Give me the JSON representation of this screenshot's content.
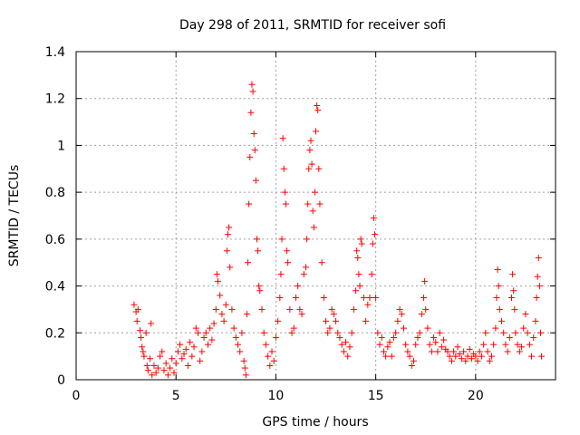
{
  "chart_data": {
    "type": "scatter",
    "title": "Day 298 of 2011, SRMTID for receiver sofi",
    "xlabel": "GPS time / hours",
    "ylabel": "SRMTID / TECUs",
    "xlim": [
      0,
      24
    ],
    "ylim": [
      0,
      1.4
    ],
    "xticks": [
      0,
      5,
      10,
      15,
      20
    ],
    "yticks": [
      0,
      0.2,
      0.4,
      0.6,
      0.8,
      1,
      1.2,
      1.4
    ],
    "xtick_labels": [
      "0",
      "5",
      "10",
      "15",
      "20"
    ],
    "ytick_labels": [
      "0",
      "0.2",
      "0.4",
      "0.6",
      "0.8",
      "1",
      "1.2",
      "1.4"
    ],
    "grid": true,
    "marker": "+",
    "color": "#ff0000",
    "series": [
      {
        "name": "SRMTID",
        "points": [
          [
            2.9,
            0.32
          ],
          [
            3.0,
            0.29
          ],
          [
            3.05,
            0.25
          ],
          [
            3.1,
            0.3
          ],
          [
            3.2,
            0.21
          ],
          [
            3.25,
            0.18
          ],
          [
            3.3,
            0.14
          ],
          [
            3.35,
            0.12
          ],
          [
            3.4,
            0.1
          ],
          [
            3.5,
            0.2
          ],
          [
            3.55,
            0.06
          ],
          [
            3.6,
            0.04
          ],
          [
            3.7,
            0.09
          ],
          [
            3.75,
            0.24
          ],
          [
            3.8,
            0.02
          ],
          [
            3.9,
            0.06
          ],
          [
            4.0,
            0.03
          ],
          [
            4.1,
            0.05
          ],
          [
            4.2,
            0.1
          ],
          [
            4.3,
            0.12
          ],
          [
            4.4,
            0.04
          ],
          [
            4.5,
            0.07
          ],
          [
            4.6,
            0.02
          ],
          [
            4.7,
            0.05
          ],
          [
            4.8,
            0.09
          ],
          [
            4.9,
            0.03
          ],
          [
            5.0,
            0.07
          ],
          [
            5.1,
            0.12
          ],
          [
            5.2,
            0.15
          ],
          [
            5.3,
            0.09
          ],
          [
            5.4,
            0.11
          ],
          [
            5.5,
            0.13
          ],
          [
            5.6,
            0.06
          ],
          [
            5.7,
            0.16
          ],
          [
            5.8,
            0.1
          ],
          [
            5.9,
            0.14
          ],
          [
            6.0,
            0.22
          ],
          [
            6.1,
            0.2
          ],
          [
            6.2,
            0.08
          ],
          [
            6.3,
            0.12
          ],
          [
            6.4,
            0.18
          ],
          [
            6.5,
            0.2
          ],
          [
            6.6,
            0.15
          ],
          [
            6.7,
            0.22
          ],
          [
            6.8,
            0.17
          ],
          [
            6.9,
            0.24
          ],
          [
            7.0,
            0.3
          ],
          [
            7.05,
            0.45
          ],
          [
            7.1,
            0.42
          ],
          [
            7.2,
            0.36
          ],
          [
            7.3,
            0.28
          ],
          [
            7.4,
            0.25
          ],
          [
            7.5,
            0.32
          ],
          [
            7.55,
            0.55
          ],
          [
            7.6,
            0.62
          ],
          [
            7.65,
            0.65
          ],
          [
            7.7,
            0.48
          ],
          [
            7.8,
            0.3
          ],
          [
            7.9,
            0.22
          ],
          [
            8.0,
            0.18
          ],
          [
            8.1,
            0.15
          ],
          [
            8.2,
            0.12
          ],
          [
            8.3,
            0.2
          ],
          [
            8.4,
            0.08
          ],
          [
            8.45,
            0.05
          ],
          [
            8.5,
            0.02
          ],
          [
            8.55,
            0.28
          ],
          [
            8.6,
            0.5
          ],
          [
            8.65,
            0.75
          ],
          [
            8.7,
            0.95
          ],
          [
            8.75,
            1.14
          ],
          [
            8.8,
            1.26
          ],
          [
            8.85,
            1.23
          ],
          [
            8.9,
            1.05
          ],
          [
            8.95,
            0.98
          ],
          [
            9.0,
            0.85
          ],
          [
            9.05,
            0.6
          ],
          [
            9.1,
            0.55
          ],
          [
            9.15,
            0.4
          ],
          [
            9.2,
            0.38
          ],
          [
            9.3,
            0.3
          ],
          [
            9.4,
            0.2
          ],
          [
            9.5,
            0.15
          ],
          [
            9.6,
            0.1
          ],
          [
            9.7,
            0.06
          ],
          [
            9.8,
            0.12
          ],
          [
            9.9,
            0.08
          ],
          [
            10.0,
            0.18
          ],
          [
            10.1,
            0.25
          ],
          [
            10.2,
            0.35
          ],
          [
            10.25,
            0.45
          ],
          [
            10.3,
            0.6
          ],
          [
            10.35,
            1.03
          ],
          [
            10.4,
            0.9
          ],
          [
            10.45,
            0.8
          ],
          [
            10.5,
            0.75
          ],
          [
            10.55,
            0.55
          ],
          [
            10.6,
            0.5
          ],
          [
            10.7,
            0.3
          ],
          [
            10.8,
            0.2
          ],
          [
            10.9,
            0.22
          ],
          [
            11.0,
            0.35
          ],
          [
            11.1,
            0.4
          ],
          [
            11.2,
            0.3
          ],
          [
            11.3,
            0.28
          ],
          [
            11.4,
            0.45
          ],
          [
            11.5,
            0.48
          ],
          [
            11.55,
            0.6
          ],
          [
            11.6,
            0.75
          ],
          [
            11.65,
            0.9
          ],
          [
            11.7,
            0.98
          ],
          [
            11.75,
            1.02
          ],
          [
            11.8,
            0.92
          ],
          [
            11.85,
            0.72
          ],
          [
            11.9,
            0.65
          ],
          [
            11.95,
            0.8
          ],
          [
            12.0,
            1.06
          ],
          [
            12.05,
            1.17
          ],
          [
            12.1,
            1.15
          ],
          [
            12.15,
            0.9
          ],
          [
            12.2,
            0.75
          ],
          [
            12.3,
            0.5
          ],
          [
            12.4,
            0.35
          ],
          [
            12.5,
            0.25
          ],
          [
            12.6,
            0.2
          ],
          [
            12.7,
            0.22
          ],
          [
            12.8,
            0.3
          ],
          [
            12.9,
            0.28
          ],
          [
            13.0,
            0.25
          ],
          [
            13.1,
            0.2
          ],
          [
            13.2,
            0.18
          ],
          [
            13.3,
            0.15
          ],
          [
            13.4,
            0.12
          ],
          [
            13.5,
            0.16
          ],
          [
            13.6,
            0.1
          ],
          [
            13.7,
            0.14
          ],
          [
            13.8,
            0.2
          ],
          [
            13.9,
            0.3
          ],
          [
            14.0,
            0.38
          ],
          [
            14.05,
            0.55
          ],
          [
            14.1,
            0.52
          ],
          [
            14.15,
            0.45
          ],
          [
            14.2,
            0.4
          ],
          [
            14.25,
            0.6
          ],
          [
            14.3,
            0.58
          ],
          [
            14.4,
            0.35
          ],
          [
            14.5,
            0.25
          ],
          [
            14.6,
            0.32
          ],
          [
            14.7,
            0.35
          ],
          [
            14.8,
            0.45
          ],
          [
            14.85,
            0.58
          ],
          [
            14.9,
            0.69
          ],
          [
            14.95,
            0.62
          ],
          [
            15.0,
            0.35
          ],
          [
            15.1,
            0.2
          ],
          [
            15.2,
            0.15
          ],
          [
            15.3,
            0.18
          ],
          [
            15.4,
            0.12
          ],
          [
            15.5,
            0.1
          ],
          [
            15.6,
            0.14
          ],
          [
            15.7,
            0.16
          ],
          [
            15.8,
            0.1
          ],
          [
            15.9,
            0.18
          ],
          [
            16.0,
            0.2
          ],
          [
            16.1,
            0.25
          ],
          [
            16.2,
            0.3
          ],
          [
            16.3,
            0.28
          ],
          [
            16.4,
            0.22
          ],
          [
            16.5,
            0.15
          ],
          [
            16.6,
            0.12
          ],
          [
            16.7,
            0.1
          ],
          [
            16.8,
            0.06
          ],
          [
            16.9,
            0.08
          ],
          [
            17.0,
            0.15
          ],
          [
            17.1,
            0.18
          ],
          [
            17.2,
            0.2
          ],
          [
            17.3,
            0.28
          ],
          [
            17.4,
            0.35
          ],
          [
            17.45,
            0.42
          ],
          [
            17.5,
            0.3
          ],
          [
            17.6,
            0.22
          ],
          [
            17.7,
            0.15
          ],
          [
            17.8,
            0.12
          ],
          [
            17.9,
            0.18
          ],
          [
            18.0,
            0.16
          ],
          [
            18.1,
            0.12
          ],
          [
            18.2,
            0.2
          ],
          [
            18.3,
            0.14
          ],
          [
            18.4,
            0.17
          ],
          [
            18.5,
            0.13
          ],
          [
            18.6,
            0.12
          ],
          [
            18.7,
            0.1
          ],
          [
            18.8,
            0.08
          ],
          [
            18.9,
            0.12
          ],
          [
            19.0,
            0.1
          ],
          [
            19.1,
            0.14
          ],
          [
            19.2,
            0.11
          ],
          [
            19.3,
            0.09
          ],
          [
            19.4,
            0.12
          ],
          [
            19.5,
            0.08
          ],
          [
            19.6,
            0.1
          ],
          [
            19.7,
            0.13
          ],
          [
            19.8,
            0.09
          ],
          [
            19.9,
            0.11
          ],
          [
            20.0,
            0.1
          ],
          [
            20.1,
            0.08
          ],
          [
            20.2,
            0.12
          ],
          [
            20.3,
            0.1
          ],
          [
            20.4,
            0.15
          ],
          [
            20.5,
            0.2
          ],
          [
            20.6,
            0.12
          ],
          [
            20.7,
            0.08
          ],
          [
            20.8,
            0.1
          ],
          [
            20.9,
            0.15
          ],
          [
            21.0,
            0.22
          ],
          [
            21.05,
            0.35
          ],
          [
            21.1,
            0.47
          ],
          [
            21.15,
            0.4
          ],
          [
            21.2,
            0.3
          ],
          [
            21.3,
            0.25
          ],
          [
            21.4,
            0.2
          ],
          [
            21.5,
            0.15
          ],
          [
            21.6,
            0.12
          ],
          [
            21.7,
            0.18
          ],
          [
            21.8,
            0.35
          ],
          [
            21.85,
            0.45
          ],
          [
            21.9,
            0.38
          ],
          [
            21.95,
            0.3
          ],
          [
            22.0,
            0.2
          ],
          [
            22.1,
            0.15
          ],
          [
            22.2,
            0.12
          ],
          [
            22.3,
            0.14
          ],
          [
            22.4,
            0.22
          ],
          [
            22.5,
            0.28
          ],
          [
            22.6,
            0.2
          ],
          [
            22.7,
            0.15
          ],
          [
            22.8,
            0.1
          ],
          [
            22.9,
            0.18
          ],
          [
            23.0,
            0.25
          ],
          [
            23.05,
            0.35
          ],
          [
            23.1,
            0.44
          ],
          [
            23.15,
            0.52
          ],
          [
            23.2,
            0.4
          ],
          [
            23.25,
            0.2
          ],
          [
            23.3,
            0.1
          ]
        ]
      }
    ]
  }
}
